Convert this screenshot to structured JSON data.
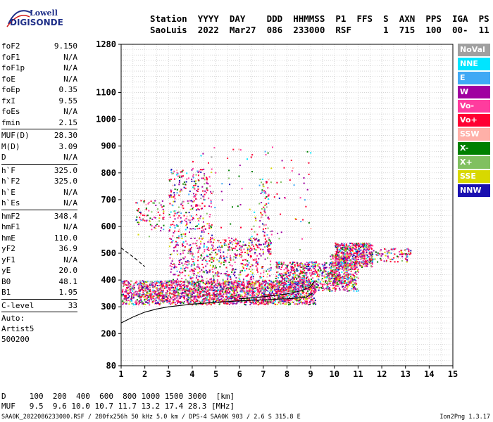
{
  "logo": {
    "line1": "Lowell",
    "line2": "DIGISONDE"
  },
  "header": {
    "labels": [
      "Station",
      "YYYY",
      "DAY",
      "DDD",
      "HHMMSS",
      "P1",
      "FFS",
      "S",
      "AXN",
      "PPS",
      "IGA",
      "PS"
    ],
    "values": [
      "SaoLuis",
      "2022",
      "Mar27",
      "086",
      "233000",
      "RSF",
      "",
      "1",
      "715",
      "100",
      "00-",
      "11"
    ]
  },
  "parameters": {
    "group1": [
      {
        "name": "foF2",
        "value": "9.150"
      },
      {
        "name": "foF1",
        "value": "N/A"
      },
      {
        "name": "foF1p",
        "value": "N/A"
      },
      {
        "name": "foE",
        "value": "N/A"
      },
      {
        "name": "foEp",
        "value": "0.35"
      },
      {
        "name": "fxI",
        "value": "9.55"
      },
      {
        "name": "foEs",
        "value": "N/A"
      },
      {
        "name": "fmin",
        "value": "2.15"
      }
    ],
    "group2": [
      {
        "name": "MUF(D)",
        "value": "28.30"
      },
      {
        "name": "M(D)",
        "value": "3.09"
      },
      {
        "name": "D",
        "value": "N/A"
      }
    ],
    "group3": [
      {
        "name": "h`F",
        "value": "325.0"
      },
      {
        "name": "h`F2",
        "value": "325.0"
      },
      {
        "name": "h`E",
        "value": "N/A"
      },
      {
        "name": "h`Es",
        "value": "N/A"
      }
    ],
    "group4": [
      {
        "name": "hmF2",
        "value": "348.4"
      },
      {
        "name": "hmF1",
        "value": "N/A"
      },
      {
        "name": "hmE",
        "value": "110.0"
      },
      {
        "name": "yF2",
        "value": "36.9"
      },
      {
        "name": "yF1",
        "value": "N/A"
      },
      {
        "name": "yE",
        "value": "20.0"
      },
      {
        "name": "B0",
        "value": "48.1"
      },
      {
        "name": "B1",
        "value": "1.95"
      }
    ],
    "group5": [
      {
        "name": "C-level",
        "value": "33"
      }
    ],
    "auto": [
      "Auto:",
      "Artist5",
      "500200"
    ]
  },
  "legend": [
    {
      "label": "NoVal",
      "color": "#a0a0a0"
    },
    {
      "label": "NNE",
      "color": "#00e5ff"
    },
    {
      "label": "E",
      "color": "#3fa9f5"
    },
    {
      "label": "W",
      "color": "#a000a0"
    },
    {
      "label": "Vo-",
      "color": "#ff3c9e"
    },
    {
      "label": "Vo+",
      "color": "#ff0033"
    },
    {
      "label": "SSW",
      "color": "#ffb0a8"
    },
    {
      "label": "X-",
      "color": "#008000"
    },
    {
      "label": "X+",
      "color": "#80c060"
    },
    {
      "label": "SSE",
      "color": "#d8d800"
    },
    {
      "label": "NNW",
      "color": "#1a10b0"
    }
  ],
  "chart_data": {
    "type": "scatter",
    "xlim": [
      1,
      15
    ],
    "ylim": [
      80,
      1280
    ],
    "x_ticks": [
      1,
      2,
      3,
      4,
      5,
      6,
      7,
      8,
      9,
      10,
      11,
      12,
      13,
      14,
      15
    ],
    "y_ticks": [
      80,
      200,
      300,
      400,
      500,
      600,
      700,
      800,
      900,
      1000,
      1100,
      1280
    ],
    "y_tick_labels": [
      "80",
      "200",
      "300",
      "400",
      "500",
      "600",
      "700",
      "800",
      "900",
      "1000",
      "1100",
      "1280"
    ],
    "grid": true,
    "clusters": [
      {
        "x": [
          1.0,
          9.2
        ],
        "y": [
          310,
          400
        ],
        "weight": 2400
      },
      {
        "x": [
          7.5,
          11.0
        ],
        "y": [
          360,
          470
        ],
        "weight": 800
      },
      {
        "x": [
          3.0,
          7.3
        ],
        "y": [
          400,
          560
        ],
        "weight": 600
      },
      {
        "x": [
          10.0,
          11.6
        ],
        "y": [
          450,
          540
        ],
        "weight": 500
      },
      {
        "x": [
          11.6,
          13.2
        ],
        "y": [
          470,
          520
        ],
        "weight": 90
      },
      {
        "x": [
          3.0,
          4.8
        ],
        "y": [
          560,
          820
        ],
        "weight": 280
      },
      {
        "x": [
          6.8,
          7.3
        ],
        "y": [
          560,
          780
        ],
        "weight": 60
      },
      {
        "x": [
          1.6,
          2.8
        ],
        "y": [
          560,
          700
        ],
        "weight": 80
      },
      {
        "x": [
          9.8,
          10.6
        ],
        "y": [
          380,
          500
        ],
        "weight": 200
      },
      {
        "x": [
          4.0,
          9.0
        ],
        "y": [
          500,
          900
        ],
        "weight": 120
      }
    ],
    "traces": [
      {
        "name": "virtual-height-trace",
        "style": "solid",
        "x": [
          1.0,
          1.5,
          2.0,
          2.5,
          3.0,
          4.0,
          5.0,
          6.0,
          7.0,
          8.0,
          8.8,
          9.1
        ],
        "y": [
          240,
          262,
          280,
          292,
          300,
          310,
          317,
          322,
          326,
          330,
          335,
          352
        ]
      },
      {
        "name": "profile-trace",
        "style": "solid",
        "x": [
          6.0,
          7.0,
          8.0,
          8.6,
          9.0,
          9.15
        ],
        "y": [
          330,
          337,
          348,
          360,
          375,
          395
        ]
      },
      {
        "name": "extrapolated-trace",
        "style": "dashed",
        "x": [
          1.0,
          1.3,
          1.6,
          2.0
        ],
        "y": [
          520,
          500,
          480,
          450
        ]
      }
    ]
  },
  "bottom": {
    "d_label": "D",
    "d_values": [
      "100",
      "200",
      "400",
      "600",
      "800",
      "1000",
      "1500",
      "3000",
      "[km]"
    ],
    "muf_label": "MUF",
    "muf_values": [
      "9.5",
      "9.6",
      "10.0",
      "10.7",
      "11.7",
      "13.2",
      "17.4",
      "28.3",
      "[MHz]"
    ]
  },
  "footer": {
    "left": "SAA0K_2022086233000.RSF / 280fx256h 50 kHz 5.0 km / DPS-4 SAA0K 903 / 2.6 S 315.8 E",
    "right": "Ion2Png 1.3.17"
  }
}
